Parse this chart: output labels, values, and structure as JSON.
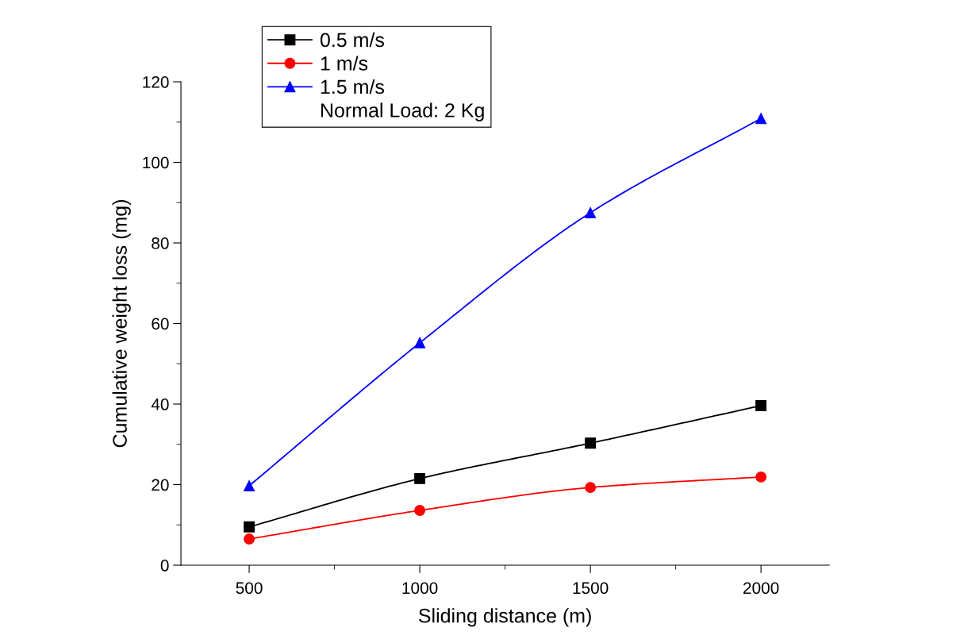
{
  "chart_data": {
    "type": "line",
    "xlabel": "Sliding distance (m)",
    "ylabel": "Cumulative weight loss (mg)",
    "x": [
      500,
      1000,
      1500,
      2000
    ],
    "series": [
      {
        "name": "0.5 m/s",
        "color": "#000000",
        "marker": "square",
        "values": [
          9.5,
          21.5,
          30.3,
          39.6
        ]
      },
      {
        "name": "1 m/s",
        "color": "#ff0000",
        "marker": "circle",
        "values": [
          6.5,
          13.6,
          19.3,
          21.9
        ]
      },
      {
        "name": "1.5 m/s",
        "color": "#0000ff",
        "marker": "triangle",
        "values": [
          19.7,
          55.2,
          87.5,
          110.9
        ]
      }
    ],
    "xlim": [
      300,
      2200
    ],
    "xticks": [
      500,
      1000,
      1500,
      2000
    ],
    "ylim": [
      0,
      120
    ],
    "yticks": [
      0,
      20,
      40,
      60,
      80,
      100,
      120
    ],
    "annotations": [
      "Normal Load: 2 Kg"
    ],
    "legend": "top left",
    "grid": false,
    "line_style": "solid"
  }
}
